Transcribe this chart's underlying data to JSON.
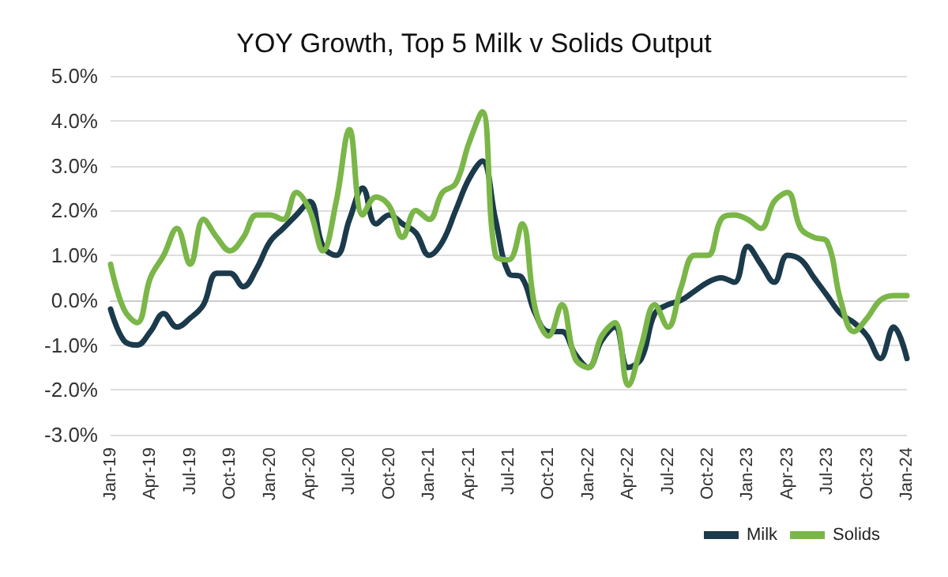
{
  "chart_data": {
    "type": "line",
    "title": "YOY Growth, Top 5 Milk v Solids Output",
    "categories": [
      "Jan-19",
      null,
      null,
      "Apr-19",
      null,
      null,
      "Jul-19",
      null,
      null,
      "Oct-19",
      null,
      null,
      "Jan-20",
      null,
      null,
      "Apr-20",
      null,
      null,
      "Jul-20",
      null,
      null,
      "Oct-20",
      null,
      null,
      "Jan-21",
      null,
      null,
      "Apr-21",
      null,
      null,
      "Jul-21",
      null,
      null,
      "Oct-21",
      null,
      null,
      "Jan-22",
      null,
      null,
      "Apr-22",
      null,
      null,
      "Jul-22",
      null,
      null,
      "Oct-22",
      null,
      null,
      "Jan-23",
      null,
      null,
      "Apr-23",
      null,
      null,
      "Jul-23",
      null,
      null,
      "Oct-23",
      null,
      null,
      "Jan-24"
    ],
    "series": [
      {
        "name": "Milk",
        "color": "#1b3a4b",
        "values": [
          -0.2,
          -0.9,
          -1.0,
          -0.7,
          -0.3,
          -0.6,
          -0.4,
          -0.1,
          0.6,
          0.6,
          0.3,
          0.7,
          1.3,
          1.6,
          1.9,
          2.2,
          1.2,
          1.0,
          1.8,
          2.5,
          1.7,
          1.9,
          1.7,
          1.5,
          1.0,
          1.3,
          2.0,
          2.7,
          3.1,
          1.8,
          0.6,
          0.5,
          -0.3,
          -0.7,
          -0.7,
          -1.2,
          -1.5,
          -0.9,
          -0.6,
          -1.5,
          -1.3,
          -0.3,
          -0.1,
          0.0,
          0.2,
          0.4,
          0.5,
          0.4,
          1.2,
          0.8,
          0.4,
          1.0,
          0.9,
          0.5,
          0.1,
          -0.3,
          -0.5,
          -0.8,
          -1.3,
          -0.6,
          -1.3
        ]
      },
      {
        "name": "Solids",
        "color": "#7ab648",
        "values": [
          0.8,
          -0.2,
          -0.5,
          0.5,
          1.0,
          1.6,
          0.8,
          1.8,
          1.4,
          1.1,
          1.4,
          1.9,
          1.9,
          1.8,
          2.4,
          2.0,
          1.1,
          2.2,
          3.8,
          1.9,
          2.3,
          2.1,
          1.4,
          2.0,
          1.8,
          2.4,
          2.6,
          3.5,
          4.2,
          1.0,
          0.9,
          1.7,
          -0.2,
          -0.8,
          -0.1,
          -1.3,
          -1.5,
          -0.8,
          -0.5,
          -1.9,
          -1.0,
          -0.1,
          -0.6,
          0.3,
          1.0,
          1.0,
          1.8,
          1.9,
          1.8,
          1.6,
          2.2,
          2.4,
          1.6,
          1.4,
          1.3,
          0.0,
          -0.7,
          -0.4,
          0.0,
          0.1,
          0.1
        ]
      }
    ],
    "ylim": [
      -3,
      5
    ],
    "yticks": [
      {
        "value": -3,
        "label": "-3.0%"
      },
      {
        "value": -2,
        "label": "-2.0%"
      },
      {
        "value": -1,
        "label": "-1.0%"
      },
      {
        "value": 0,
        "label": "0.0%"
      },
      {
        "value": 1,
        "label": "1.0%"
      },
      {
        "value": 2,
        "label": "2.0%"
      },
      {
        "value": 3,
        "label": "3.0%"
      },
      {
        "value": 4,
        "label": "4.0%"
      },
      {
        "value": 5,
        "label": "5.0%"
      }
    ],
    "grid": "y",
    "legend": "bottom right",
    "marker": "none",
    "line_style": "solid"
  }
}
